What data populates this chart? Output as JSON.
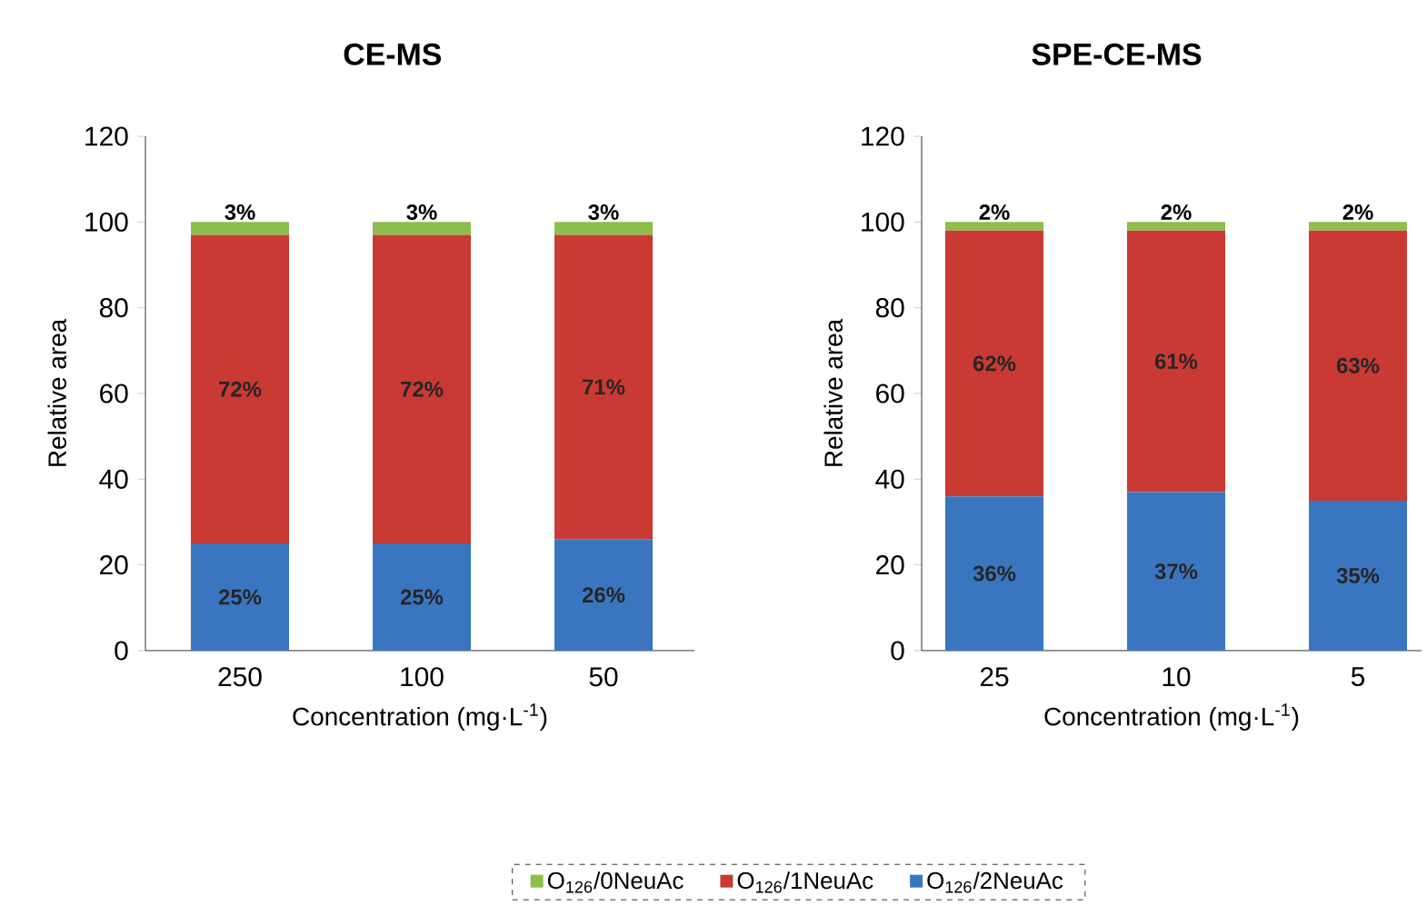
{
  "chart_data": [
    {
      "type": "bar",
      "stacked": true,
      "title": "CE-MS",
      "xlabel": "Concentration (mg·L$^{-1}$)",
      "ylabel": "Relative area",
      "categories": [
        "250",
        "100",
        "50"
      ],
      "ylim": [
        0,
        120
      ],
      "yticks": [
        0,
        20,
        40,
        60,
        80,
        100,
        120
      ],
      "legend": "bottom",
      "series": [
        {
          "name": "O$_{126}$/2NeuAc",
          "color": "#3a76c0",
          "values": [
            25,
            25,
            26
          ],
          "value_labels": [
            "25%",
            "25%",
            "26%"
          ]
        },
        {
          "name": "O$_{126}$/1NeuAc",
          "color": "#c83a33",
          "values": [
            72,
            72,
            71
          ],
          "value_labels": [
            "72%",
            "72%",
            "71%"
          ]
        },
        {
          "name": "O$_{126}$/0NeuAc",
          "color": "#8dbd4a",
          "values": [
            3,
            3,
            3
          ],
          "value_labels": [
            "3%",
            "3%",
            "3%"
          ]
        }
      ]
    },
    {
      "type": "bar",
      "stacked": true,
      "title": "SPE-CE-MS",
      "xlabel": "Concentration (mg·L$^{-1}$)",
      "ylabel": "Relative area",
      "categories": [
        "25",
        "10",
        "5"
      ],
      "ylim": [
        0,
        120
      ],
      "yticks": [
        0,
        20,
        40,
        60,
        80,
        100,
        120
      ],
      "series": [
        {
          "color": "#3a76c0",
          "values": [
            36,
            37,
            35
          ],
          "value_labels": [
            "36%",
            "37%",
            "35%"
          ]
        },
        {
          "color": "#c83a33",
          "values": [
            62,
            61,
            63
          ],
          "value_labels": [
            "62%",
            "61%",
            "63%"
          ]
        },
        {
          "color": "#8dbd4a",
          "values": [
            2,
            2,
            2
          ],
          "value_labels": [
            "2%",
            "2%",
            "2%"
          ]
        }
      ]
    }
  ]
}
